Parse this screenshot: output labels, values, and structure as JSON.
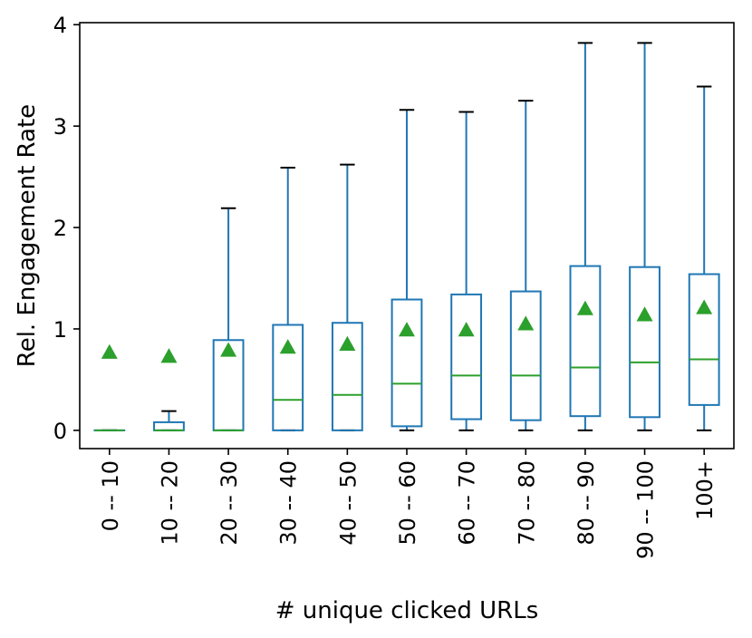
{
  "chart_data": {
    "type": "box",
    "xlabel": "# unique clicked URLs",
    "ylabel": "Rel. Engagement Rate",
    "ylim": [
      -0.18,
      4.02
    ],
    "yticks": [
      0,
      1,
      2,
      3,
      4
    ],
    "grid": false,
    "categories": [
      "0 -- 10",
      "10 -- 20",
      "20 -- 30",
      "30 -- 40",
      "40 -- 50",
      "50 -- 60",
      "60 -- 70",
      "70 -- 80",
      "80 -- 90",
      "90 -- 100",
      "100+"
    ],
    "boxes": [
      {
        "whisker_low": 0,
        "q1": 0,
        "median": 0,
        "q3": 0,
        "whisker_high": 0,
        "mean": 0.77
      },
      {
        "whisker_low": 0,
        "q1": 0,
        "median": 0,
        "q3": 0.08,
        "whisker_high": 0.19,
        "mean": 0.73
      },
      {
        "whisker_low": 0,
        "q1": 0,
        "median": 0,
        "q3": 0.89,
        "whisker_high": 2.19,
        "mean": 0.79
      },
      {
        "whisker_low": 0,
        "q1": 0,
        "median": 0.3,
        "q3": 1.04,
        "whisker_high": 2.59,
        "mean": 0.82
      },
      {
        "whisker_low": 0,
        "q1": 0,
        "median": 0.35,
        "q3": 1.06,
        "whisker_high": 2.62,
        "mean": 0.85
      },
      {
        "whisker_low": 0,
        "q1": 0.04,
        "median": 0.46,
        "q3": 1.29,
        "whisker_high": 3.16,
        "mean": 0.99
      },
      {
        "whisker_low": 0,
        "q1": 0.11,
        "median": 0.54,
        "q3": 1.34,
        "whisker_high": 3.14,
        "mean": 0.99
      },
      {
        "whisker_low": 0,
        "q1": 0.1,
        "median": 0.54,
        "q3": 1.37,
        "whisker_high": 3.25,
        "mean": 1.05
      },
      {
        "whisker_low": 0,
        "q1": 0.14,
        "median": 0.62,
        "q3": 1.62,
        "whisker_high": 3.82,
        "mean": 1.2
      },
      {
        "whisker_low": 0,
        "q1": 0.13,
        "median": 0.67,
        "q3": 1.61,
        "whisker_high": 3.82,
        "mean": 1.14
      },
      {
        "whisker_low": 0,
        "q1": 0.25,
        "median": 0.7,
        "q3": 1.54,
        "whisker_high": 3.39,
        "mean": 1.21
      }
    ],
    "colors": {
      "box": "#1f77b4",
      "median": "#2ca02c",
      "mean_marker": "#2ca02c",
      "whisker_cap": "#000000"
    }
  }
}
